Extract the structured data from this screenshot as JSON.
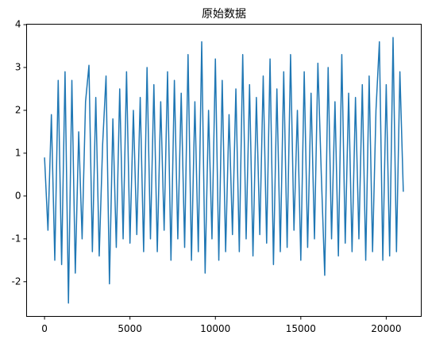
{
  "chart_data": {
    "type": "line",
    "title": "原始数据",
    "x": [
      0,
      200,
      400,
      600,
      800,
      1000,
      1200,
      1400,
      1600,
      1800,
      2000,
      2200,
      2400,
      2600,
      2800,
      3000,
      3200,
      3400,
      3600,
      3800,
      4000,
      4200,
      4400,
      4600,
      4800,
      5000,
      5200,
      5400,
      5600,
      5800,
      6000,
      6200,
      6400,
      6600,
      6800,
      7000,
      7200,
      7400,
      7600,
      7800,
      8000,
      8200,
      8400,
      8600,
      8800,
      9000,
      9200,
      9400,
      9600,
      9800,
      10000,
      10200,
      10400,
      10600,
      10800,
      11000,
      11200,
      11400,
      11600,
      11800,
      12000,
      12200,
      12400,
      12600,
      12800,
      13000,
      13200,
      13400,
      13600,
      13800,
      14000,
      14200,
      14400,
      14600,
      14800,
      15000,
      15200,
      15400,
      15600,
      15800,
      16000,
      16200,
      16400,
      16600,
      16800,
      17000,
      17200,
      17400,
      17600,
      17800,
      18000,
      18200,
      18400,
      18600,
      18800,
      19000,
      19200,
      19400,
      19600,
      19800,
      20000,
      20200,
      20400,
      20600,
      20800,
      21000
    ],
    "values": [
      0.9,
      -0.8,
      1.9,
      -1.5,
      2.7,
      -1.6,
      2.9,
      -2.5,
      2.7,
      -1.8,
      1.5,
      -1.0,
      2.2,
      3.05,
      -1.3,
      2.3,
      -1.4,
      1.2,
      2.8,
      -2.05,
      1.8,
      -1.2,
      2.5,
      -1.0,
      2.9,
      -1.1,
      2.0,
      -0.9,
      2.3,
      -1.3,
      3.0,
      -1.0,
      2.6,
      -1.3,
      2.2,
      -0.8,
      2.9,
      -1.5,
      2.7,
      -1.0,
      2.4,
      -1.2,
      3.3,
      -1.5,
      2.2,
      -1.3,
      3.6,
      -1.8,
      2.0,
      -1.0,
      3.2,
      -1.5,
      2.7,
      -1.3,
      1.9,
      -0.9,
      2.5,
      -1.3,
      3.3,
      -1.0,
      2.6,
      -1.4,
      2.3,
      -0.9,
      2.8,
      -1.1,
      3.2,
      -1.6,
      2.5,
      -1.3,
      2.9,
      -1.2,
      3.3,
      -0.8,
      2.0,
      -1.5,
      2.9,
      -1.2,
      2.4,
      -1.0,
      3.1,
      0.5,
      -1.85,
      3.0,
      -1.0,
      2.2,
      -1.4,
      3.3,
      -1.1,
      2.4,
      -1.3,
      2.3,
      -1.0,
      2.6,
      -1.5,
      2.8,
      -1.3,
      2.0,
      3.6,
      -1.5,
      2.6,
      -1.4,
      3.7,
      -1.3,
      2.9,
      0.1
    ],
    "color": "#1f77b4",
    "xlim": [
      -1050,
      22050
    ],
    "xticks": [
      0,
      5000,
      10000,
      15000,
      20000
    ],
    "ylim": [
      -2.81,
      4.01
    ],
    "yticks": [
      -2,
      -1,
      0,
      1,
      2,
      3,
      4
    ]
  }
}
